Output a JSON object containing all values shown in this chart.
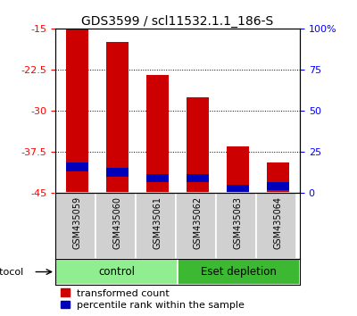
{
  "title": "GDS3599 / scl11532.1.1_186-S",
  "samples": [
    "GSM435059",
    "GSM435060",
    "GSM435061",
    "GSM435062",
    "GSM435063",
    "GSM435064"
  ],
  "red_top": [
    -15.2,
    -17.5,
    -23.5,
    -27.5,
    -36.5,
    -39.5
  ],
  "red_bottom": [
    -45,
    -45,
    -45,
    -45,
    -45,
    -45
  ],
  "blue_top": [
    -39.5,
    -40.5,
    -41.5,
    -41.5,
    -43.5,
    -43.0
  ],
  "blue_bottom": [
    -41.0,
    -42.0,
    -43.0,
    -43.0,
    -45.0,
    -44.5
  ],
  "ylim": [
    -45,
    -15
  ],
  "yticks_left": [
    -15,
    -22.5,
    -30,
    -37.5,
    -45
  ],
  "yticks_right": [
    0,
    25,
    50,
    75,
    100
  ],
  "yticks_right_pos": [
    -45,
    -37.5,
    -30,
    -22.5,
    -15
  ],
  "group_info": [
    {
      "label": "control",
      "start": 0,
      "end": 3,
      "color": "#90EE90"
    },
    {
      "label": "Eset depletion",
      "start": 3,
      "end": 6,
      "color": "#3CB832"
    }
  ],
  "protocol_label": "protocol",
  "bar_width": 0.55,
  "red_color": "#CC0000",
  "blue_color": "#0000BB",
  "background_color": "#ffffff",
  "legend_red": "transformed count",
  "legend_blue": "percentile rank within the sample",
  "title_fontsize": 10,
  "tick_fontsize": 8,
  "sample_fontsize": 7,
  "legend_fontsize": 8
}
